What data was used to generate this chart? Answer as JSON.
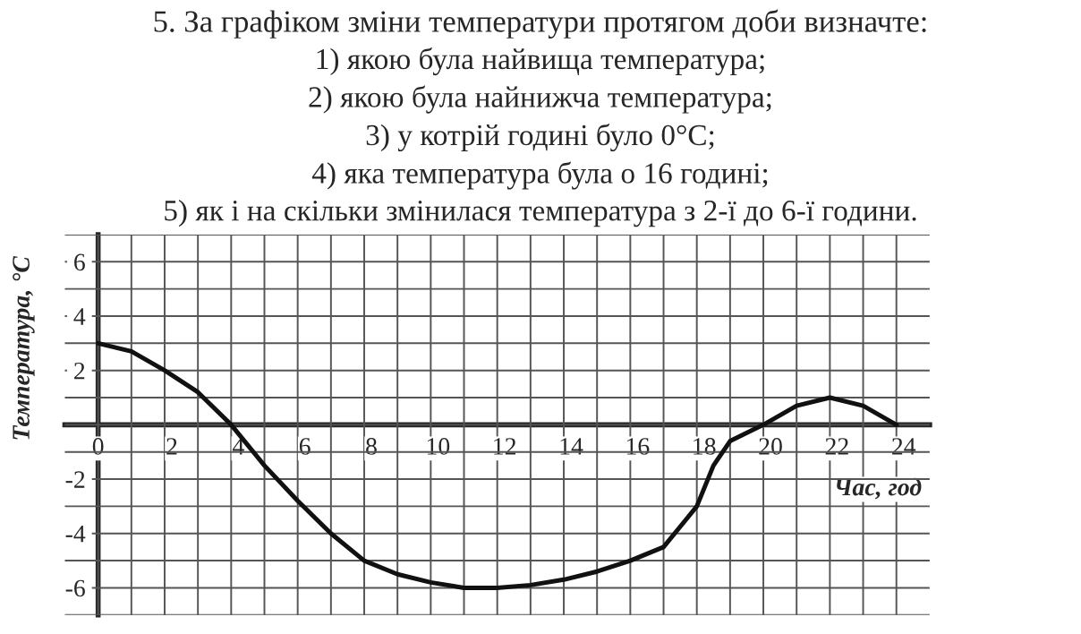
{
  "chart_data": {
    "type": "line",
    "title": "5. За графіком зміни температури протягом доби визначте:",
    "annotations": [
      "1) якою була найвища температура;",
      "2) якою була найнижча температура;",
      "3) у котрій годині було 0°C;",
      "4) яка температура була о 16 годині;",
      "5) як і на скільки змінилася температура з 2-ї до 6-ї години."
    ],
    "xlabel": "Час, год",
    "ylabel": "Температура, °C",
    "x": [
      0,
      1,
      2,
      3,
      4,
      5,
      6,
      7,
      8,
      9,
      10,
      11,
      12,
      13,
      14,
      15,
      16,
      17,
      18,
      18.5,
      19,
      20,
      21,
      22,
      23,
      24
    ],
    "series": [
      {
        "color": "#111111",
        "values": [
          3,
          2.7,
          2,
          1.2,
          0,
          -1.5,
          -2.8,
          -4,
          -5,
          -5.5,
          -5.8,
          -6,
          -6,
          -5.9,
          -5.7,
          -5.4,
          -5,
          -4.5,
          -3,
          -1.5,
          -0.6,
          0,
          0.7,
          1,
          0.7,
          0
        ]
      }
    ],
    "xlim": [
      -1,
      25
    ],
    "ylim": [
      -7,
      7
    ],
    "xticks": [
      0,
      {
        "value": 1,
        "label": null
      },
      2,
      {
        "value": 3,
        "label": null
      },
      4,
      {
        "value": 5,
        "label": null
      },
      6,
      {
        "value": 7,
        "label": null
      },
      8,
      {
        "value": 9,
        "label": null
      },
      10,
      {
        "value": 11,
        "label": null
      },
      12,
      {
        "value": 13,
        "label": null
      },
      14,
      {
        "value": 15,
        "label": null
      },
      16,
      {
        "value": 17,
        "label": null
      },
      18,
      {
        "value": 19,
        "label": null
      },
      20,
      {
        "value": 21,
        "label": null
      },
      22,
      {
        "value": 23,
        "label": null
      },
      24
    ],
    "yticks": [
      {
        "value": -7,
        "label": null
      },
      -6,
      {
        "value": -5,
        "label": null
      },
      -4,
      {
        "value": -3,
        "label": null
      },
      -2,
      {
        "value": -1,
        "label": null
      },
      {
        "value": 0,
        "label": null
      },
      {
        "value": 1,
        "label": null
      },
      2,
      {
        "value": 3,
        "label": null
      },
      4,
      {
        "value": 5,
        "label": null
      },
      6,
      {
        "value": 7,
        "label": null
      }
    ],
    "grid": true,
    "marker": "none",
    "line_style": "solid",
    "legend": false
  }
}
